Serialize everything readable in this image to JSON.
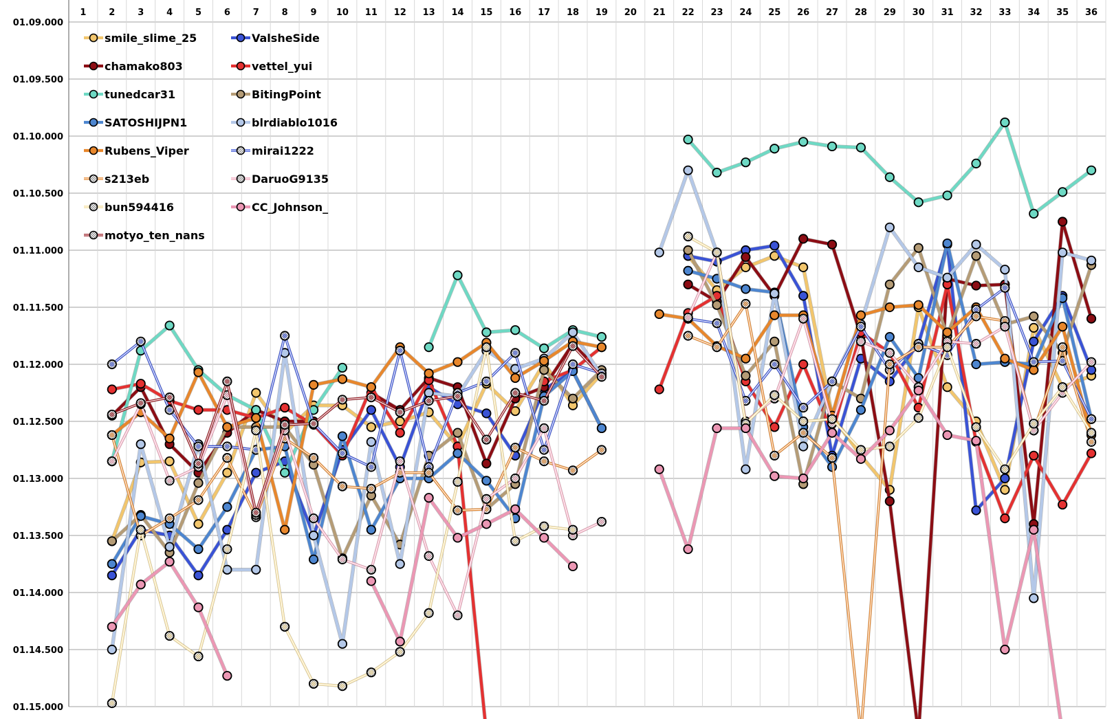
{
  "chart_data": {
    "type": "line",
    "title": "",
    "xlabel": "",
    "ylabel": "",
    "x": [
      1,
      2,
      3,
      4,
      5,
      6,
      7,
      8,
      9,
      10,
      11,
      12,
      13,
      14,
      15,
      16,
      17,
      18,
      19,
      20,
      21,
      22,
      23,
      24,
      25,
      26,
      27,
      28,
      29,
      30,
      31,
      32,
      33,
      34,
      35,
      36
    ],
    "y_tick_labels": [
      "01.09.000",
      "01.09.500",
      "01.10.000",
      "01.10.500",
      "01.11.000",
      "01.11.500",
      "01.12.000",
      "01.12.500",
      "01.13.000",
      "01.13.500",
      "01.14.000",
      "01.14.500",
      "01.15.000"
    ],
    "ylim": [
      69.0,
      75.0
    ],
    "y_units": "seconds (lap time 1:MM.mmm shown as 01.MM.mmm)",
    "y_inverted": true,
    "grid": true,
    "legend_position": "top-left",
    "series": [
      {
        "name": "smile_slime_25",
        "color": "#f2c66d",
        "style": "solid",
        "values": [
          null,
          73.55,
          72.86,
          72.85,
          73.4,
          72.95,
          72.25,
          72.6,
          72.36,
          72.36,
          72.55,
          72.5,
          72.42,
          72.72,
          72.17,
          72.41,
          71.99,
          72.36,
          72.08,
          null,
          null,
          71.05,
          71.35,
          71.15,
          71.05,
          71.15,
          72.45,
          72.8,
          73.1,
          71.5,
          72.2,
          72.5,
          73.1,
          71.68,
          72.2,
          72.1
        ]
      },
      {
        "name": "ValsheSide",
        "color": "#3a53d6",
        "style": "solid",
        "values": [
          null,
          73.85,
          73.45,
          73.5,
          73.85,
          73.45,
          72.95,
          72.85,
          73.5,
          72.75,
          72.4,
          72.9,
          72.2,
          72.35,
          72.43,
          72.8,
          72.22,
          72.06,
          72.56,
          null,
          null,
          71.05,
          71.1,
          71.0,
          70.96,
          71.4,
          72.8,
          71.95,
          72.15,
          71.82,
          70.95,
          73.28,
          73.0,
          71.8,
          71.4,
          72.05
        ]
      },
      {
        "name": "chamako803",
        "color": "#8c0d14",
        "style": "solid",
        "values": [
          null,
          72.45,
          72.2,
          72.7,
          72.95,
          72.6,
          72.4,
          72.5,
          72.5,
          null,
          72.25,
          72.4,
          72.12,
          72.2,
          72.87,
          72.3,
          72.2,
          71.82,
          72.08,
          null,
          null,
          71.3,
          71.45,
          71.06,
          71.4,
          70.9,
          70.95,
          71.75,
          73.2,
          75.5,
          71.25,
          71.31,
          71.3,
          73.4,
          70.75,
          71.6
        ]
      },
      {
        "name": "vettel_yui",
        "color": "#e53131",
        "style": "solid",
        "values": [
          null,
          72.22,
          72.17,
          72.32,
          72.4,
          72.4,
          72.47,
          72.38,
          72.53,
          72.8,
          72.2,
          72.6,
          72.14,
          72.72,
          76.0,
          null,
          72.15,
          72.05,
          71.85,
          null,
          72.22,
          71.55,
          71.4,
          72.15,
          72.55,
          72.0,
          72.6,
          71.72,
          71.9,
          72.38,
          71.3,
          72.68,
          73.35,
          72.8,
          73.23,
          72.78
        ]
      },
      {
        "name": "tunedcar31",
        "color": "#6ed9c4",
        "style": "solid",
        "values": [
          null,
          72.85,
          71.88,
          71.66,
          72.05,
          72.27,
          72.4,
          72.95,
          72.4,
          72.03,
          null,
          null,
          71.85,
          71.22,
          71.72,
          71.7,
          71.86,
          71.7,
          71.76,
          null,
          null,
          70.03,
          70.32,
          70.23,
          70.11,
          70.05,
          70.09,
          70.1,
          70.36,
          70.58,
          70.52,
          70.24,
          69.88,
          70.68,
          70.49,
          70.3
        ]
      },
      {
        "name": "BitingPoint",
        "color": "#b59c76",
        "style": "solid",
        "values": [
          null,
          73.55,
          73.32,
          73.65,
          73.04,
          72.55,
          72.55,
          72.55,
          72.88,
          73.7,
          73.15,
          73.58,
          72.8,
          72.6,
          73.27,
          73.05,
          72.05,
          72.3,
          72.05,
          null,
          null,
          71.0,
          71.48,
          72.1,
          71.8,
          73.05,
          72.15,
          72.3,
          71.3,
          70.98,
          71.75,
          71.05,
          71.65,
          71.58,
          71.9,
          71.13
        ]
      },
      {
        "name": "SATOSHIJPN1",
        "color": "#4d86d0",
        "style": "solid",
        "values": [
          null,
          73.75,
          73.33,
          73.4,
          73.62,
          73.25,
          72.75,
          72.72,
          73.71,
          72.63,
          73.45,
          73.0,
          73.0,
          72.78,
          73.02,
          73.35,
          72.28,
          72.06,
          72.56,
          null,
          null,
          71.18,
          71.25,
          71.34,
          71.37,
          72.55,
          72.9,
          72.4,
          71.76,
          72.12,
          70.94,
          72.0,
          71.98,
          72.0,
          71.42,
          72.48
        ]
      },
      {
        "name": "blrdiablo1016",
        "color": "#b4c8e8",
        "style": "solid",
        "values": [
          null,
          74.5,
          72.7,
          73.6,
          72.7,
          73.8,
          73.8,
          71.9,
          73.5,
          74.45,
          72.68,
          73.75,
          72.25,
          72.28,
          71.88,
          72.04,
          71.95,
          71.72,
          72.1,
          null,
          71.02,
          70.3,
          71.02,
          72.92,
          71.38,
          72.72,
          72.15,
          71.65,
          70.8,
          71.15,
          71.24,
          70.95,
          71.17,
          74.05,
          71.02,
          71.09
        ]
      },
      {
        "name": "Rubens_Viper",
        "color": "#e8872c",
        "style": "solid",
        "values": [
          null,
          72.62,
          72.42,
          72.65,
          72.07,
          72.55,
          72.47,
          73.45,
          72.18,
          72.13,
          72.2,
          71.85,
          72.08,
          71.98,
          71.81,
          72.12,
          71.97,
          71.8,
          71.85,
          null,
          71.56,
          71.6,
          71.84,
          71.95,
          71.57,
          71.57,
          72.45,
          71.57,
          71.5,
          71.48,
          71.72,
          71.5,
          71.95,
          72.05,
          71.67,
          72.62
        ]
      },
      {
        "name": "mirai1222",
        "color": "#3a53d6",
        "style": "double",
        "values": [
          null,
          72.0,
          71.8,
          72.4,
          72.72,
          72.72,
          72.75,
          71.75,
          72.52,
          72.78,
          72.9,
          71.88,
          72.9,
          72.25,
          72.15,
          71.9,
          72.75,
          72.0,
          72.08,
          null,
          null,
          71.6,
          71.64,
          72.32,
          72.0,
          72.38,
          72.15,
          71.67,
          72.05,
          71.82,
          71.92,
          71.52,
          71.33,
          71.98,
          71.97,
          72.48
        ]
      },
      {
        "name": "s213eb",
        "color": "#e8872c",
        "style": "double",
        "values": [
          null,
          72.62,
          73.5,
          73.35,
          73.19,
          72.82,
          73.34,
          72.65,
          72.82,
          73.07,
          73.09,
          72.95,
          72.95,
          73.28,
          73.27,
          72.73,
          72.85,
          72.93,
          72.75,
          null,
          null,
          71.75,
          71.85,
          71.47,
          72.8,
          72.6,
          72.82,
          76.0,
          72.0,
          71.85,
          71.85,
          71.58,
          71.62,
          72.58,
          71.85,
          72.68
        ]
      },
      {
        "name": "DaruoG9135",
        "color": "#f0a5bb",
        "style": "double",
        "values": [
          null,
          72.85,
          72.35,
          73.02,
          72.9,
          72.27,
          73.32,
          72.58,
          73.35,
          73.71,
          73.8,
          72.85,
          73.68,
          74.2,
          73.18,
          73.0,
          72.56,
          73.5,
          73.38,
          null,
          null,
          71.59,
          71.02,
          72.5,
          72.3,
          71.6,
          72.52,
          71.8,
          71.9,
          72.2,
          71.8,
          71.82,
          71.67,
          72.58,
          72.25,
          71.98
        ]
      },
      {
        "name": "bun594416",
        "color": "#f4dd9a",
        "style": "double",
        "values": [
          null,
          74.97,
          73.45,
          74.38,
          74.56,
          73.62,
          72.58,
          74.3,
          74.8,
          74.82,
          74.7,
          74.52,
          74.18,
          73.03,
          71.85,
          73.55,
          73.42,
          73.45,
          null,
          null,
          null,
          70.88,
          71.02,
          72.52,
          72.27,
          72.5,
          72.48,
          72.75,
          72.72,
          72.47,
          71.85,
          72.55,
          72.92,
          72.52,
          72.2,
          72.6
        ]
      },
      {
        "name": "CC_Johnson_",
        "color": "#ec97b4",
        "style": "solid",
        "values": [
          null,
          74.3,
          73.93,
          73.73,
          74.13,
          74.73,
          null,
          null,
          null,
          null,
          73.9,
          74.43,
          73.17,
          73.52,
          73.4,
          73.27,
          73.52,
          73.77,
          null,
          null,
          72.92,
          73.62,
          72.56,
          72.56,
          72.98,
          73.0,
          72.6,
          72.83,
          72.58,
          72.23,
          72.62,
          72.67,
          74.5,
          73.45,
          75.3,
          null
        ]
      },
      {
        "name": "motyo_ten_nans",
        "color": "#9a1a22",
        "style": "double",
        "values": [
          null,
          72.44,
          72.34,
          72.29,
          72.87,
          72.15,
          73.3,
          72.53,
          72.52,
          72.31,
          72.29,
          72.42,
          72.32,
          72.28,
          72.66,
          72.25,
          72.32,
          71.84,
          72.11,
          null,
          null,
          null,
          null,
          null,
          null,
          null,
          null,
          null,
          null,
          null,
          null,
          null,
          null,
          null,
          null,
          null
        ]
      }
    ]
  }
}
